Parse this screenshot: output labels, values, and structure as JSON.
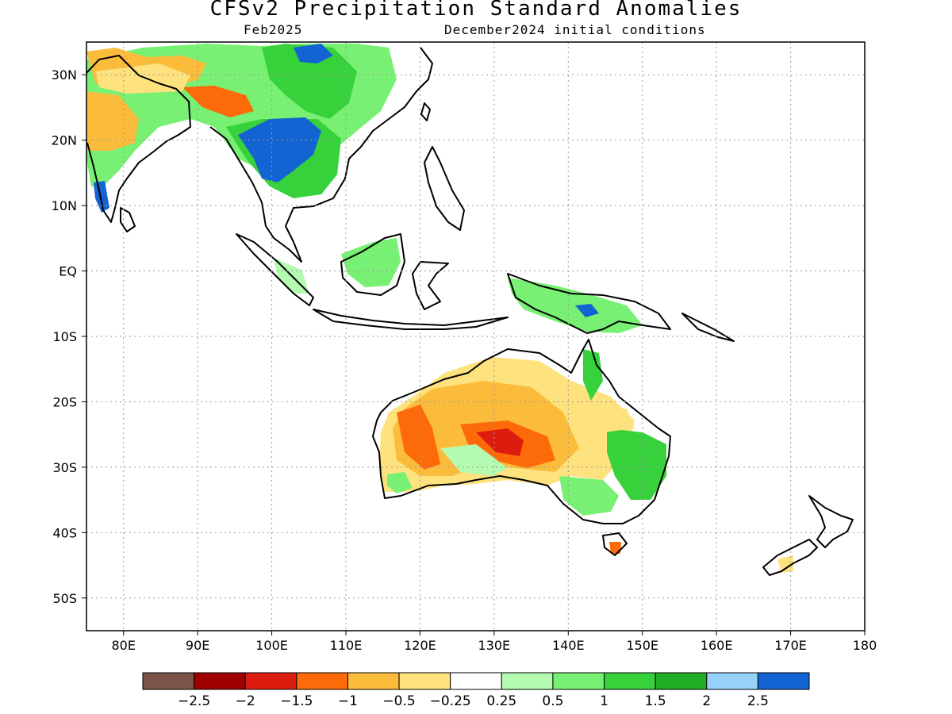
{
  "title": "CFSv2 Precipitation Standard Anomalies",
  "subtitle_left": "Feb2025",
  "subtitle_right": "December2024 initial conditions",
  "map": {
    "lon_range": [
      75,
      180
    ],
    "lat_range": [
      -55,
      35
    ],
    "lon_ticks": [
      {
        "value": 80,
        "label": "80E"
      },
      {
        "value": 90,
        "label": "90E"
      },
      {
        "value": 100,
        "label": "100E"
      },
      {
        "value": 110,
        "label": "110E"
      },
      {
        "value": 120,
        "label": "120E"
      },
      {
        "value": 130,
        "label": "130E"
      },
      {
        "value": 140,
        "label": "140E"
      },
      {
        "value": 150,
        "label": "150E"
      },
      {
        "value": 160,
        "label": "160E"
      },
      {
        "value": 170,
        "label": "170E"
      },
      {
        "value": 180,
        "label": "180"
      }
    ],
    "lat_ticks": [
      {
        "value": 30,
        "label": "30N"
      },
      {
        "value": 20,
        "label": "20N"
      },
      {
        "value": 10,
        "label": "10N"
      },
      {
        "value": 0,
        "label": "EQ"
      },
      {
        "value": -10,
        "label": "10S"
      },
      {
        "value": -20,
        "label": "20S"
      },
      {
        "value": -30,
        "label": "30S"
      },
      {
        "value": -40,
        "label": "40S"
      },
      {
        "value": -50,
        "label": "50S"
      }
    ],
    "grid": "dotted"
  },
  "colorbar": {
    "colors": [
      "#7a5447",
      "#a00000",
      "#dc1c0e",
      "#fd6a0a",
      "#fcbc3b",
      "#fde27d",
      "#ffffff",
      "#b4fab0",
      "#78f073",
      "#37d23b",
      "#1fae24",
      "#96d2fa",
      "#1463d2"
    ],
    "labels": [
      "-2.5",
      "-2",
      "-1.5",
      "-1",
      "-0.5",
      "-0.25",
      "0.25",
      "0.5",
      "1",
      "1.5",
      "2",
      "2.5"
    ]
  },
  "colors": {
    "pos1": "#b4fab0",
    "pos2": "#78f073",
    "pos3": "#37d23b",
    "pos4": "#1fae24",
    "pos5": "#96d2fa",
    "pos6": "#1463d2",
    "neg1": "#fde27d",
    "neg2": "#fcbc3b",
    "neg3": "#fd6a0a",
    "neg4": "#dc1c0e"
  }
}
